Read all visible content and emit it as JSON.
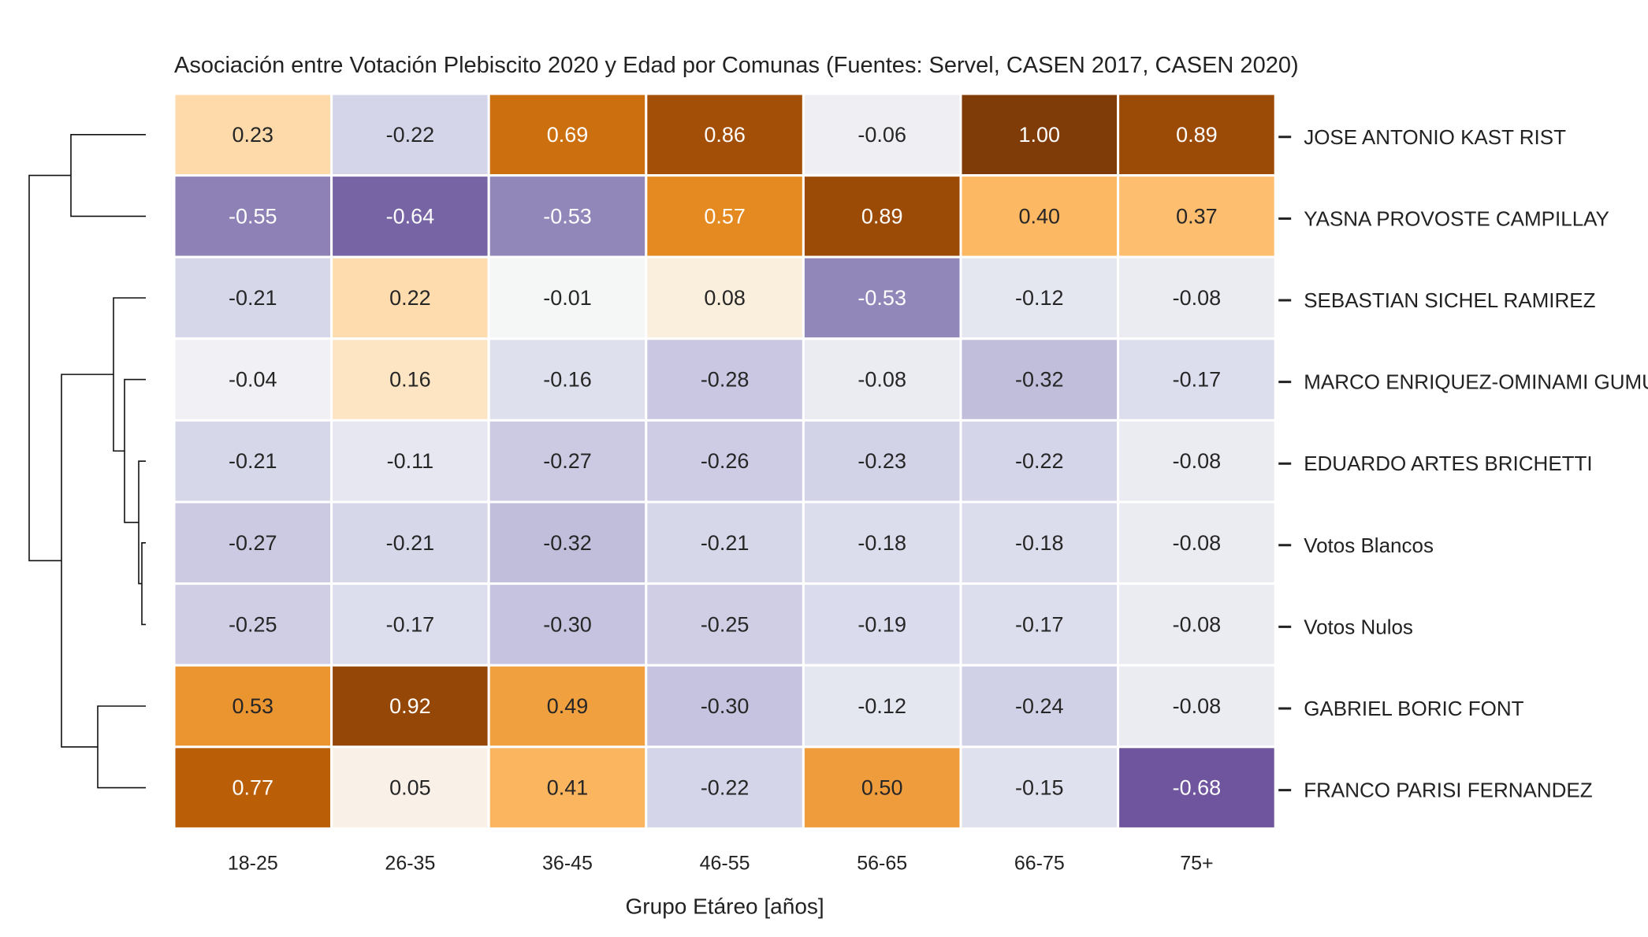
{
  "chart_data": {
    "type": "heatmap",
    "title": "Asociación entre Votación Plebiscito 2020 y Edad por Comunas (Fuentes: Servel, CASEN 2017, CASEN 2020)",
    "xlabel": "Grupo Etáreo [años]",
    "ylabel": "",
    "columns": [
      "18-25",
      "26-35",
      "36-45",
      "46-55",
      "56-65",
      "66-75",
      "75+"
    ],
    "rows": [
      "JOSE ANTONIO KAST RIST",
      "YASNA PROVOSTE CAMPILLAY",
      "SEBASTIAN SICHEL RAMIREZ",
      "MARCO ENRIQUEZ-OMINAMI GUMUCIO",
      "EDUARDO ARTES BRICHETTI",
      "Votos Blancos",
      "Votos Nulos",
      "GABRIEL BORIC FONT",
      "FRANCO PARISI FERNANDEZ"
    ],
    "values": [
      [
        0.23,
        -0.22,
        0.69,
        0.86,
        -0.06,
        1.0,
        0.89
      ],
      [
        -0.55,
        -0.64,
        -0.53,
        0.57,
        0.89,
        0.4,
        0.37
      ],
      [
        -0.21,
        0.22,
        -0.01,
        0.08,
        -0.53,
        -0.12,
        -0.08
      ],
      [
        -0.04,
        0.16,
        -0.16,
        -0.28,
        -0.08,
        -0.32,
        -0.17
      ],
      [
        -0.21,
        -0.11,
        -0.27,
        -0.26,
        -0.23,
        -0.22,
        -0.08
      ],
      [
        -0.27,
        -0.21,
        -0.32,
        -0.21,
        -0.18,
        -0.18,
        -0.08
      ],
      [
        -0.25,
        -0.17,
        -0.3,
        -0.25,
        -0.19,
        -0.17,
        -0.08
      ],
      [
        0.53,
        0.92,
        0.49,
        -0.3,
        -0.12,
        -0.24,
        -0.08
      ],
      [
        0.77,
        0.05,
        0.41,
        -0.22,
        0.5,
        -0.15,
        -0.68
      ]
    ],
    "value_format": "2 decimals",
    "colormap": "PuOr (diverging: purple negative, orange/brown positive)",
    "vmin": -1,
    "vmax": 1,
    "dendrogram": "rows",
    "grid": false,
    "legend": "none"
  }
}
